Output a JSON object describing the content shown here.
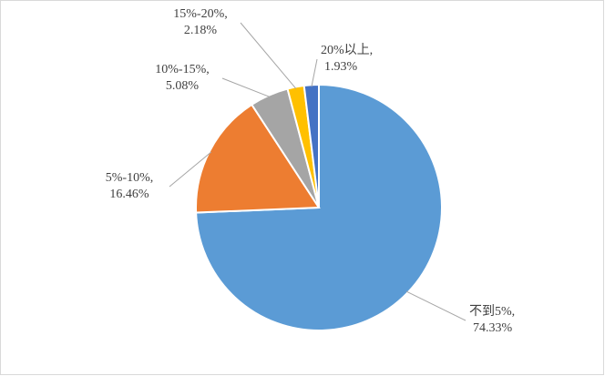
{
  "chart_data": {
    "type": "pie",
    "categories": [
      "不到5%,",
      "5%-10%,",
      "10%-15%,",
      "15%-20%,",
      "20%以上,"
    ],
    "values": [
      74.33,
      16.46,
      5.08,
      2.18,
      1.93
    ],
    "value_labels": [
      "74.33%",
      "16.46%",
      "5.08%",
      "2.18%",
      "1.93%"
    ],
    "colors": [
      "#5b9bd5",
      "#ed7d31",
      "#a5a5a5",
      "#ffc000",
      "#4472c4"
    ]
  }
}
